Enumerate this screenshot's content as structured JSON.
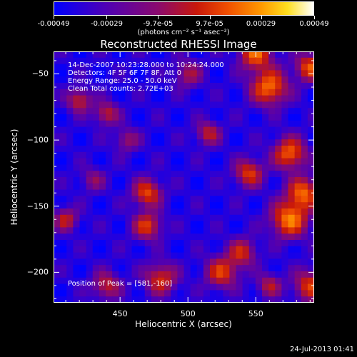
{
  "colorbar": {
    "tick_labels": [
      "-0.00049",
      "-0.00029",
      "-9.7e-05",
      "9.7e-05",
      "0.00029",
      "0.00049"
    ],
    "tick_values": [
      -0.00049,
      -0.00029,
      -9.7e-05,
      9.7e-05,
      0.00029,
      0.00049
    ],
    "range": [
      -0.00049,
      0.00049
    ],
    "unit": "(photons cm⁻² s⁻¹ asec⁻²)"
  },
  "chart_data": {
    "type": "heatmap",
    "title": "Reconstructed RHESSI Image",
    "xlabel": "Heliocentric X (arcsec)",
    "ylabel": "Heliocentric Y (arcsec)",
    "xlim": [
      401,
      593
    ],
    "ylim": [
      -223,
      -33
    ],
    "xticks": [
      450,
      500,
      550
    ],
    "xtick_labels": [
      "450",
      "500",
      "550"
    ],
    "yticks": [
      -50,
      -100,
      -150,
      -200
    ],
    "ytick_labels": [
      "−50",
      "−100",
      "−150",
      "−200"
    ],
    "colormap": [
      "#0000ff",
      "#4f00b4",
      "#8a0a6e",
      "#c8180a",
      "#f05000",
      "#ff9a00",
      "#ffdf20",
      "#ffffff"
    ],
    "peak_position": [
      581,
      -160
    ]
  },
  "annotations": {
    "time": "14-Dec-2007 10:23:28.000 to 10:24:24.000",
    "detectors": "Detectors: 4F 5F 6F 7F 8F, Att 0",
    "energy": "Energy Range: 25.0 - 50.0 keV",
    "clean": "Clean     Total counts: 2.72E+03",
    "peak": "Position of Peak = [581,-160]"
  },
  "footer": {
    "date": "24-Jul-2013 01:41"
  }
}
